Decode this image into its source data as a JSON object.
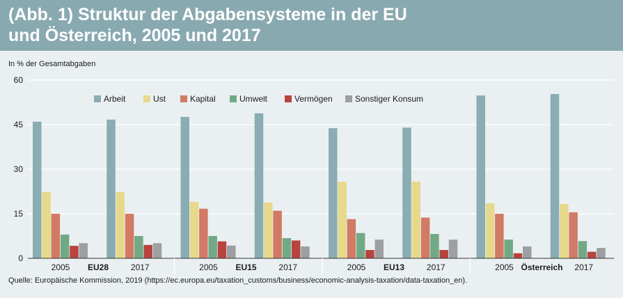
{
  "header": {
    "title": "(Abb. 1) Struktur der Abgabensysteme in der EU\nund Österreich, 2005 und 2017"
  },
  "colors": {
    "header_bg": "#89a9b0",
    "background": "#eaf0f2",
    "gridline": "#ffffff",
    "axis": "#333333",
    "text": "#1a1a1a"
  },
  "chart_data": {
    "type": "bar",
    "ylabel": "In % der Gesamtabgaben",
    "ylim": [
      0,
      60
    ],
    "yticks": [
      0,
      15,
      30,
      45,
      60
    ],
    "grid": true,
    "legend_position": "top",
    "groups": [
      {
        "label": "EU28",
        "years": [
          "2005",
          "2017"
        ]
      },
      {
        "label": "EU15",
        "years": [
          "2005",
          "2017"
        ]
      },
      {
        "label": "EU13",
        "years": [
          "2005",
          "2017"
        ]
      },
      {
        "label": "Österreich",
        "years": [
          "2005",
          "2017"
        ]
      }
    ],
    "categories": [
      "EU28 2005",
      "EU28 2017",
      "EU15 2005",
      "EU15 2017",
      "EU13 2005",
      "EU13 2017",
      "Österreich 2005",
      "Österreich 2017"
    ],
    "series": [
      {
        "name": "Arbeit",
        "color": "#8aacb3",
        "values": [
          46.0,
          46.7,
          47.6,
          48.8,
          43.8,
          44.0,
          54.8,
          55.3
        ]
      },
      {
        "name": "Ust",
        "color": "#e6d98b",
        "values": [
          22.3,
          22.3,
          19.0,
          18.8,
          25.8,
          25.8,
          18.5,
          18.3
        ]
      },
      {
        "name": "Kapital",
        "color": "#d17a65",
        "values": [
          15.0,
          15.0,
          16.7,
          16.0,
          13.2,
          13.7,
          15.0,
          15.5
        ]
      },
      {
        "name": "Umwelt",
        "color": "#72a985",
        "values": [
          8.0,
          7.5,
          7.5,
          6.8,
          8.5,
          8.2,
          6.3,
          5.8
        ]
      },
      {
        "name": "Vermögen",
        "color": "#b8433f",
        "values": [
          4.2,
          4.5,
          5.7,
          6.0,
          2.8,
          2.8,
          1.7,
          2.2
        ]
      },
      {
        "name": "Sonstiger Konsum",
        "color": "#9d9fa2",
        "values": [
          5.1,
          5.1,
          4.3,
          4.0,
          6.3,
          6.3,
          4.0,
          3.5
        ]
      }
    ]
  },
  "footer": {
    "source": "Quelle: Europäische Kommission, 2019 (https://ec.europa.eu/taxation_customs/business/economic-analysis-taxation/data-taxation_en)."
  }
}
